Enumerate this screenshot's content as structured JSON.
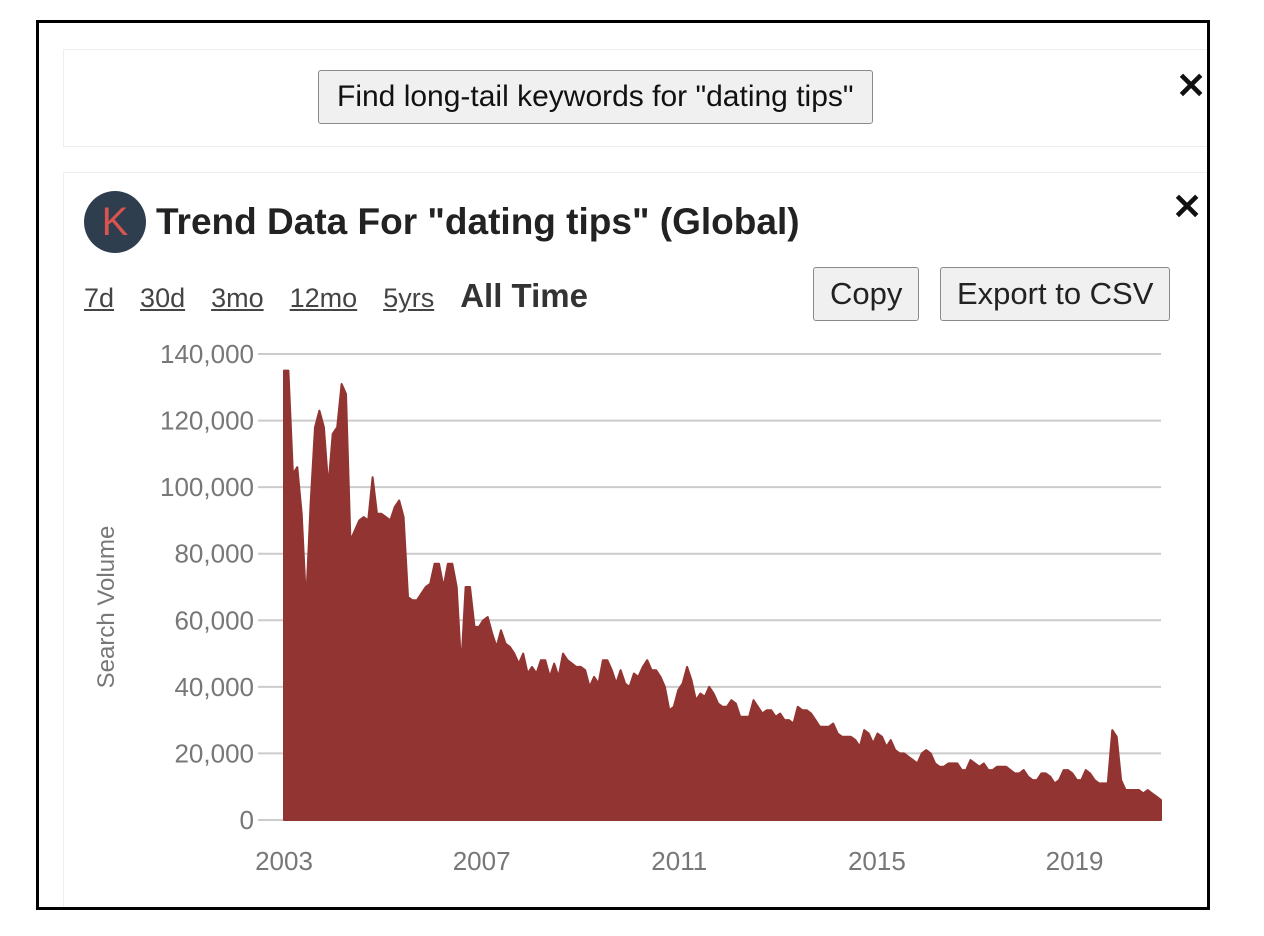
{
  "top_panel": {
    "long_tail_button": "Find long-tail keywords for \"dating tips\"",
    "close": "✕"
  },
  "trend_panel": {
    "logo_letter": "K",
    "title": "Trend Data For \"dating tips\" (Global)",
    "close": "✕",
    "ranges": [
      "7d",
      "30d",
      "3mo",
      "12mo",
      "5yrs",
      "All Time"
    ],
    "active_range": "All Time",
    "copy_label": "Copy",
    "export_label": "Export to CSV"
  },
  "colors": {
    "area": "#923431",
    "logo_bg": "#2e3e4f",
    "logo_letter": "#d9534f",
    "grid": "#cccccc",
    "axis_text": "#777777"
  },
  "chart_data": {
    "type": "area",
    "title": "Trend Data For \"dating tips\" (Global)",
    "xlabel": "",
    "ylabel": "Search Volume",
    "ylim": [
      0,
      140000
    ],
    "yticks": [
      0,
      20000,
      40000,
      60000,
      80000,
      100000,
      120000,
      140000
    ],
    "ytick_labels": [
      "0",
      "20,000",
      "40,000",
      "60,000",
      "80,000",
      "100,000",
      "120,000",
      "140,000"
    ],
    "xticks": [
      2003,
      2007,
      2011,
      2015,
      2019
    ],
    "xlim": [
      2003.0,
      2020.75
    ],
    "grid": true,
    "legend": "none",
    "x_start": 2003.0,
    "x_step_months": 1,
    "series": [
      {
        "name": "Search Volume",
        "values": [
          135000,
          135000,
          104000,
          106000,
          92000,
          65000,
          95000,
          118000,
          123000,
          118000,
          100000,
          116000,
          118000,
          131000,
          128000,
          84000,
          87000,
          90000,
          91000,
          90000,
          103000,
          92000,
          92000,
          91000,
          90000,
          94000,
          96000,
          91000,
          67000,
          66000,
          66000,
          68000,
          70000,
          71000,
          77000,
          77000,
          70000,
          77000,
          77000,
          70000,
          46000,
          70000,
          70000,
          58000,
          58000,
          60000,
          61000,
          56000,
          52000,
          57000,
          53000,
          52000,
          50000,
          47000,
          50000,
          44000,
          46000,
          44000,
          48000,
          48000,
          43000,
          47000,
          43000,
          50000,
          48000,
          47000,
          46000,
          46000,
          45000,
          40000,
          43000,
          41000,
          48000,
          48000,
          45000,
          41000,
          45000,
          41000,
          40000,
          44000,
          43000,
          46000,
          48000,
          45000,
          45000,
          43000,
          40000,
          33000,
          34000,
          39000,
          41000,
          46000,
          42000,
          36000,
          38000,
          37000,
          40000,
          38000,
          35000,
          34000,
          34000,
          36000,
          35000,
          31000,
          31000,
          31000,
          36000,
          34000,
          32000,
          33000,
          33000,
          31000,
          32000,
          30000,
          30000,
          29000,
          34000,
          33000,
          33000,
          32000,
          30000,
          28000,
          28000,
          28000,
          29000,
          26000,
          25000,
          25000,
          25000,
          24000,
          22000,
          27000,
          26000,
          23000,
          26000,
          25000,
          22000,
          24000,
          21000,
          20000,
          20000,
          19000,
          18000,
          17000,
          20000,
          21000,
          20000,
          17000,
          16000,
          16000,
          17000,
          17000,
          17000,
          15000,
          15000,
          18000,
          17000,
          16000,
          17000,
          15000,
          15000,
          16000,
          16000,
          16000,
          15000,
          14000,
          14000,
          15000,
          13000,
          12000,
          12000,
          14000,
          14000,
          13000,
          11000,
          12000,
          15000,
          15000,
          14000,
          12000,
          12000,
          15000,
          14000,
          12000,
          11000,
          11000,
          11000,
          27000,
          25000,
          12000,
          9000,
          9000,
          9000,
          9000,
          8000,
          9000,
          8000,
          7000,
          6000
        ]
      }
    ]
  }
}
